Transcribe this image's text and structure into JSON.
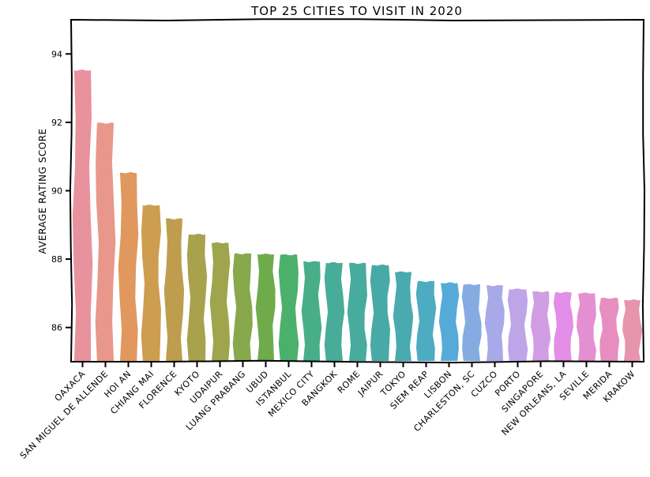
{
  "chart_data": {
    "type": "bar",
    "title": "TOP 25 CITIES TO VISIT IN 2020",
    "xlabel": "",
    "ylabel": "AVERAGE RATING SCORE",
    "ylim": [
      85.0,
      95.0
    ],
    "yticks": [
      86,
      88,
      90,
      92,
      94
    ],
    "grid": false,
    "categories": [
      "OAXACA",
      "SAN MIGUEL DE ALLENDE",
      "HOI AN",
      "CHIANG MAI",
      "FLORENCE",
      "KYOTO",
      "UDAIPUR",
      "LUANG PRABANG",
      "UBUD",
      "ISTANBUL",
      "MEXICO CITY",
      "BANGKOK",
      "ROME",
      "JAIPUR",
      "TOKYO",
      "SIEM REAP",
      "LISBON",
      "CHARLESTON, SC",
      "CUZCO",
      "PORTO",
      "SINGAPORE",
      "NEW ORLEANS, LA",
      "SEVILLE",
      "MERIDA",
      "KRAKOW"
    ],
    "values": [
      93.55,
      92.0,
      90.55,
      89.6,
      89.2,
      88.75,
      88.5,
      88.18,
      88.17,
      88.15,
      87.95,
      87.92,
      87.9,
      87.85,
      87.65,
      87.37,
      87.33,
      87.28,
      87.25,
      87.15,
      87.07,
      87.05,
      87.03,
      86.88,
      86.83
    ],
    "colors": [
      "#e8929e",
      "#e8978a",
      "#e0985e",
      "#cd9d50",
      "#be9d4e",
      "#a9a24d",
      "#9ea54d",
      "#88a84c",
      "#6fab4b",
      "#4bb06b",
      "#48ae8a",
      "#47ad98",
      "#47ab9e",
      "#48aaa6",
      "#49aab0",
      "#4dabc2",
      "#56aad8",
      "#86abe2",
      "#a7a9e8",
      "#bea5e8",
      "#d19ee4",
      "#e38ee6",
      "#e58fd3",
      "#e68ebf",
      "#e794ae"
    ]
  }
}
